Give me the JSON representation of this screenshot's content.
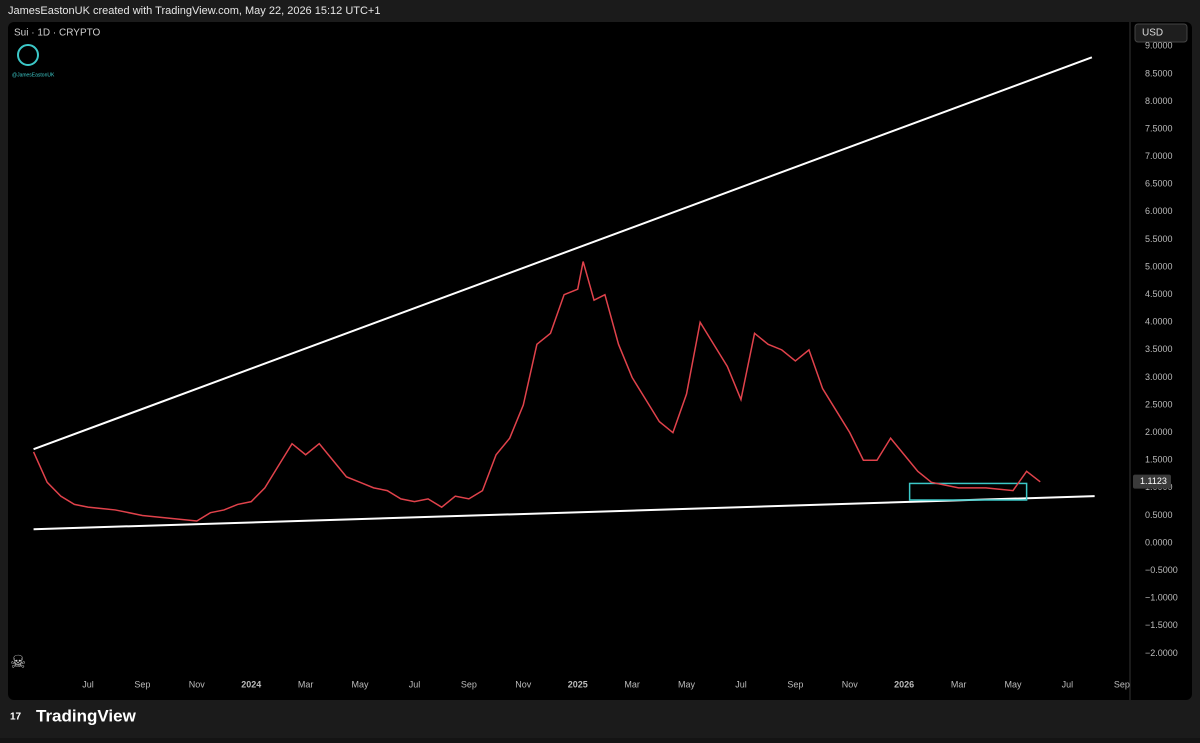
{
  "header": "JamesEastonUK created with TradingView.com, May 22, 2026 15:12 UTC+1",
  "footer": "TradingView",
  "chart_data": {
    "type": "line",
    "title": "Sui · 1D · CRYPTO",
    "watermark": "@JamesEastonUK",
    "currency": "USD",
    "last_price_label": "1.1123",
    "last_price": 1.1123,
    "xlim": [
      -1.94,
      39.3
    ],
    "xticks": [
      {
        "value": 1,
        "label": "Jul"
      },
      {
        "value": 3,
        "label": "Sep"
      },
      {
        "value": 5,
        "label": "Nov"
      },
      {
        "value": 7,
        "label": "2024"
      },
      {
        "value": 9,
        "label": "Mar"
      },
      {
        "value": 11,
        "label": "May"
      },
      {
        "value": 13,
        "label": "Jul"
      },
      {
        "value": 15,
        "label": "Sep"
      },
      {
        "value": 17,
        "label": "Nov"
      },
      {
        "value": 19,
        "label": "2025"
      },
      {
        "value": 21,
        "label": "Mar"
      },
      {
        "value": 23,
        "label": "May"
      },
      {
        "value": 25,
        "label": "Jul"
      },
      {
        "value": 27,
        "label": "Sep"
      },
      {
        "value": 29,
        "label": "Nov"
      },
      {
        "value": 31,
        "label": "2026"
      },
      {
        "value": 33,
        "label": "Mar"
      },
      {
        "value": 35,
        "label": "May"
      },
      {
        "value": 37,
        "label": "Jul"
      },
      {
        "value": 39,
        "label": "Sep"
      }
    ],
    "ylim": [
      -2.3,
      9.44
    ],
    "yticks": [
      {
        "value": 9,
        "label": "9.0000"
      },
      {
        "value": 8.5,
        "label": "8.5000"
      },
      {
        "value": 8,
        "label": "8.0000"
      },
      {
        "value": 7.5,
        "label": "7.5000"
      },
      {
        "value": 7,
        "label": "7.0000"
      },
      {
        "value": 6.5,
        "label": "6.5000"
      },
      {
        "value": 6,
        "label": "6.0000"
      },
      {
        "value": 5.5,
        "label": "5.5000"
      },
      {
        "value": 5,
        "label": "5.0000"
      },
      {
        "value": 4.5,
        "label": "4.5000"
      },
      {
        "value": 4,
        "label": "4.0000"
      },
      {
        "value": 3.5,
        "label": "3.5000"
      },
      {
        "value": 3,
        "label": "3.0000"
      },
      {
        "value": 2.5,
        "label": "2.5000"
      },
      {
        "value": 2,
        "label": "2.0000"
      },
      {
        "value": 1.5,
        "label": "1.5000"
      },
      {
        "value": 1,
        "label": "1.0000"
      },
      {
        "value": 0.5,
        "label": "0.5000"
      },
      {
        "value": 0,
        "label": "0.0000"
      },
      {
        "value": -0.5,
        "label": "−0.5000"
      },
      {
        "value": -1,
        "label": "−1.0000"
      },
      {
        "value": -1.5,
        "label": "−1.5000"
      },
      {
        "value": -2,
        "label": "−2.0000"
      }
    ],
    "series": [
      {
        "color": "#e0424b",
        "x": [
          -1,
          -0.5,
          0,
          0.5,
          1,
          2,
          3,
          4,
          5,
          5.5,
          6,
          6.5,
          7,
          7.5,
          8,
          8.5,
          9,
          9.5,
          10,
          10.5,
          11,
          11.5,
          12,
          12.5,
          13,
          13.5,
          14,
          14.5,
          15,
          15.5,
          16,
          16.5,
          17,
          17.5,
          18,
          18.5,
          19,
          19.2,
          19.6,
          20,
          20.5,
          21,
          21.5,
          22,
          22.5,
          23,
          23.5,
          24,
          24.5,
          25,
          25.5,
          26,
          26.5,
          27,
          27.5,
          28,
          28.5,
          29,
          29.5,
          30,
          30.5,
          31,
          31.5,
          32,
          33,
          34,
          35,
          35.5,
          36
        ],
        "values": [
          1.65,
          1.1,
          0.85,
          0.7,
          0.65,
          0.6,
          0.5,
          0.45,
          0.4,
          0.55,
          0.6,
          0.7,
          0.75,
          1.0,
          1.4,
          1.8,
          1.6,
          1.8,
          1.5,
          1.2,
          1.1,
          1.0,
          0.95,
          0.8,
          0.75,
          0.8,
          0.65,
          0.85,
          0.8,
          0.95,
          1.6,
          1.9,
          2.5,
          3.6,
          3.8,
          4.5,
          4.6,
          5.1,
          4.4,
          4.5,
          3.6,
          3.0,
          2.6,
          2.2,
          2.0,
          2.7,
          4.0,
          3.6,
          3.2,
          2.6,
          3.8,
          3.6,
          3.5,
          3.3,
          3.5,
          2.8,
          2.4,
          2.0,
          1.5,
          1.5,
          1.9,
          1.6,
          1.3,
          1.1,
          1.0,
          1.0,
          0.95,
          1.3,
          1.11
        ]
      }
    ],
    "trendlines": [
      {
        "x": [
          -1,
          37.9
        ],
        "y": [
          1.7,
          8.8
        ]
      },
      {
        "x": [
          -1,
          38
        ],
        "y": [
          0.25,
          0.85
        ]
      }
    ],
    "box": {
      "x": [
        31.2,
        35.5
      ],
      "y": [
        0.78,
        1.08
      ],
      "color": "#3cc8c8"
    }
  }
}
